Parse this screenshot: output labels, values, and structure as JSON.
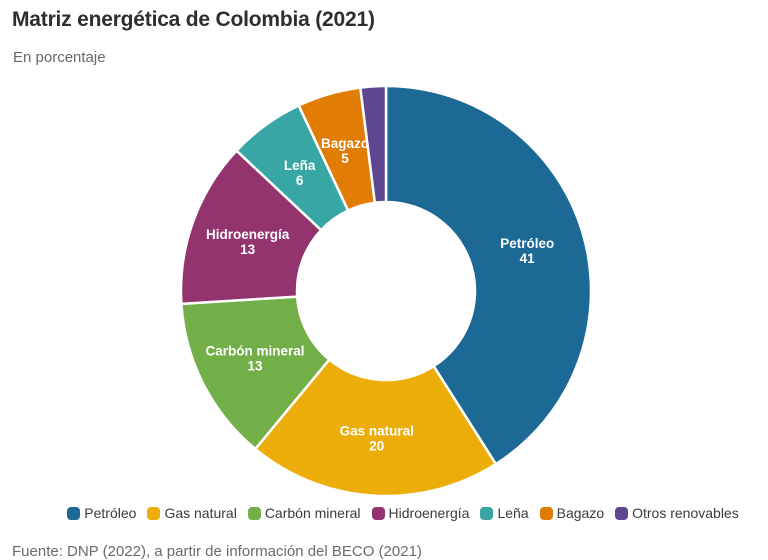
{
  "header": {
    "title": "Matriz energética de Colombia (2021)",
    "subtitle": "En porcentaje"
  },
  "chart_data": {
    "type": "pie",
    "subtype": "donut",
    "title": "Matriz energética de Colombia (2021)",
    "subtitle": "En porcentaje",
    "unit": "percent",
    "direction": "clockwise",
    "start_angle_deg": 0,
    "inner_radius_ratio": 0.43,
    "legend_position": "bottom",
    "slice_label_min_value": 5,
    "slice_label_color": "#ffffff",
    "categories": [
      "Petróleo",
      "Gas natural",
      "Carbón mineral",
      "Hidroenergía",
      "Leña",
      "Bagazo",
      "Otros renovables"
    ],
    "values": [
      41,
      20,
      13,
      13,
      6,
      5,
      2
    ],
    "colors": [
      "#1d6996",
      "#edad08",
      "#73af48",
      "#94346e",
      "#38a6a5",
      "#e17c05",
      "#5f4690"
    ]
  },
  "footer": {
    "source": "Fuente: DNP (2022), a partir de información del BECO (2021)"
  },
  "theme": {
    "background": "#ffffff",
    "title_color": "#2e2e2e",
    "subtitle_color": "#676767",
    "legend_text_color": "#3b3b3b",
    "source_color": "#6b6b6b",
    "slice_gap_color": "#ffffff"
  }
}
